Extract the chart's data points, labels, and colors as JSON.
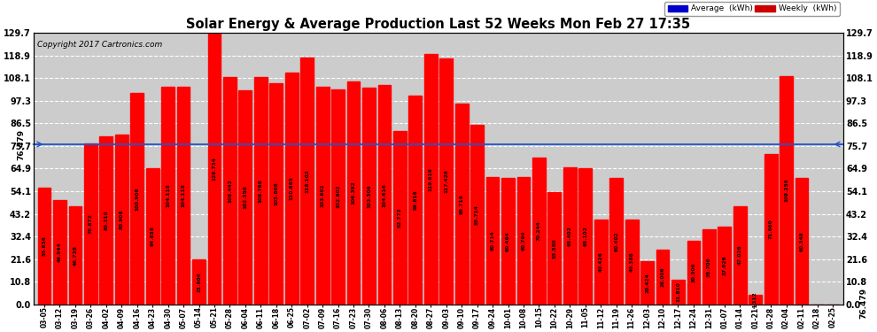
{
  "title": "Solar Energy & Average Production Last 52 Weeks Mon Feb 27 17:35",
  "copyright": "Copyright 2017 Cartronics.com",
  "average_value": 76.479,
  "bar_color": "#ff0000",
  "average_line_color": "#2255cc",
  "background_color": "#ffffff",
  "plot_bg_color": "#cccccc",
  "grid_color": "#ffffff",
  "ylim": [
    0.0,
    129.7
  ],
  "yticks": [
    0.0,
    10.8,
    21.6,
    32.4,
    43.2,
    54.1,
    64.9,
    75.7,
    86.5,
    97.3,
    108.1,
    118.9,
    129.7
  ],
  "legend_avg_color": "#0000cc",
  "legend_weekly_color": "#cc0000",
  "categories": [
    "03-05",
    "03-12",
    "03-19",
    "03-26",
    "04-02",
    "04-09",
    "04-16",
    "04-23",
    "04-30",
    "05-07",
    "05-14",
    "05-21",
    "05-28",
    "06-04",
    "06-11",
    "06-18",
    "06-25",
    "07-02",
    "07-09",
    "07-16",
    "07-23",
    "07-30",
    "08-06",
    "08-13",
    "08-20",
    "08-27",
    "09-03",
    "09-10",
    "09-17",
    "09-24",
    "10-01",
    "10-08",
    "10-15",
    "10-22",
    "10-29",
    "11-05",
    "11-12",
    "11-19",
    "11-26",
    "12-03",
    "12-10",
    "12-17",
    "12-24",
    "12-31",
    "01-07",
    "01-14",
    "01-21",
    "01-28",
    "02-04",
    "02-11",
    "02-18",
    "02-25"
  ],
  "values": [
    55.836,
    49.944,
    46.728,
    76.872,
    80.31,
    80.908,
    100.906,
    64.858,
    104.118,
    104.118,
    21.606,
    129.734,
    108.442,
    102.358,
    108.768,
    105.608,
    110.665,
    118.102,
    103.902,
    102.902,
    106.392,
    103.506,
    104.616,
    82.772,
    99.816,
    119.616,
    117.426,
    95.716,
    85.714,
    60.714,
    60.464,
    60.794,
    70.244,
    53.58,
    65.402,
    65.102,
    40.426,
    60.402,
    40.388,
    20.424,
    26.006,
    11.81,
    30.306,
    35.706,
    37.026,
    47.026,
    4.312,
    71.66,
    109.256,
    60.348,
    0.0,
    0.0
  ],
  "value_labels": [
    "55.836",
    "49.944",
    "46.728",
    "76.872",
    "80.310",
    "80.908",
    "100.906",
    "64.858",
    "104.118",
    "104.118",
    "21.606",
    "129.734",
    "108.442",
    "102.358",
    "108.768",
    "105.608",
    "110.665",
    "118.102",
    "103.902",
    "102.902",
    "106.392",
    "103.506",
    "104.616",
    "82.772",
    "99.816",
    "119.616",
    "117.426",
    "95.716",
    "85.714",
    "60.714",
    "60.464",
    "60.794",
    "70.244",
    "53.580",
    "65.402",
    "65.102",
    "40.426",
    "60.402",
    "40.388",
    "20.424",
    "26.006",
    "11.810",
    "30.306",
    "35.706",
    "37.026",
    "47.026",
    "4.312",
    "71.660",
    "109.256",
    "60.348",
    "",
    ""
  ]
}
